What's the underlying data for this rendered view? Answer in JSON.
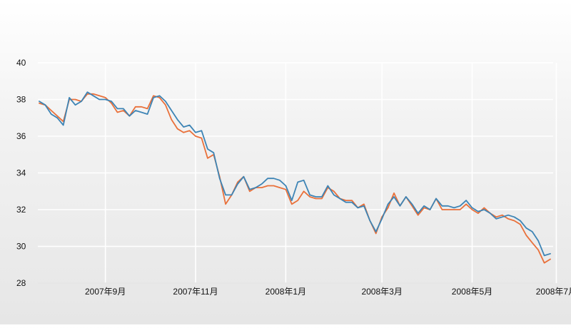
{
  "chart_data": {
    "type": "line",
    "title": "",
    "xlabel": "",
    "ylabel": "",
    "ylim": [
      28,
      40
    ],
    "yticks": [
      28,
      30,
      32,
      34,
      36,
      38,
      40
    ],
    "ytick_labels": [
      "28",
      "30",
      "32",
      "34",
      "36",
      "38",
      "40"
    ],
    "xtick_labels": [
      "2007年9月",
      "2007年11月",
      "2008年1月",
      "2008年3月",
      "2008年5月",
      "2008年7月"
    ],
    "xtick_index": [
      11,
      26,
      41,
      57,
      72,
      86
    ],
    "grid": true,
    "legend": "none",
    "colors": {
      "series_1": "#3d84b5",
      "series_2": "#e9703a",
      "grid": "#ffffff"
    },
    "series": [
      {
        "values": [
          37.9,
          37.7,
          37.2,
          37.0,
          36.6,
          38.1,
          37.7,
          37.9,
          38.4,
          38.2,
          38.0,
          38.0,
          37.9,
          37.5,
          37.5,
          37.1,
          37.4,
          37.3,
          37.2,
          38.1,
          38.2,
          37.9,
          37.4,
          36.9,
          36.5,
          36.6,
          36.2,
          36.3,
          35.3,
          35.1,
          33.7,
          32.8,
          32.8,
          33.4,
          33.8,
          33.1,
          33.2,
          33.4,
          33.7,
          33.7,
          33.6,
          33.3,
          32.5,
          33.5,
          33.6,
          32.8,
          32.7,
          32.7,
          33.3,
          32.8,
          32.6,
          32.4,
          32.4,
          32.1,
          32.2,
          31.4,
          30.8,
          31.5,
          32.3,
          32.7,
          32.2,
          32.7,
          32.3,
          31.8,
          32.2,
          32.0,
          32.6,
          32.2,
          32.2,
          32.1,
          32.2,
          32.5,
          32.1,
          31.9,
          32.0,
          31.8,
          31.5,
          31.6,
          31.7,
          31.6,
          31.4,
          31.0,
          30.8,
          30.3,
          29.5,
          29.6
        ],
        "color": "#3d84b5"
      },
      {
        "values": [
          37.8,
          37.7,
          37.4,
          37.1,
          36.8,
          38.0,
          38.0,
          37.9,
          38.3,
          38.3,
          38.2,
          38.1,
          37.8,
          37.3,
          37.4,
          37.1,
          37.6,
          37.6,
          37.5,
          38.2,
          38.1,
          37.7,
          36.9,
          36.4,
          36.2,
          36.3,
          36.0,
          35.9,
          34.8,
          35.0,
          33.8,
          32.3,
          32.8,
          33.5,
          33.8,
          33.0,
          33.2,
          33.2,
          33.3,
          33.3,
          33.2,
          33.1,
          32.3,
          32.5,
          33.0,
          32.7,
          32.6,
          32.6,
          33.2,
          33.0,
          32.6,
          32.5,
          32.5,
          32.1,
          32.3,
          31.4,
          30.7,
          31.6,
          32.1,
          32.9,
          32.2,
          32.7,
          32.2,
          31.7,
          32.1,
          32.0,
          32.6,
          32.0,
          32.0,
          32.0,
          32.0,
          32.3,
          32.0,
          31.8,
          32.1,
          31.8,
          31.6,
          31.7,
          31.5,
          31.4,
          31.2,
          30.6,
          30.2,
          29.8,
          29.1,
          29.3
        ],
        "color": "#e9703a"
      }
    ]
  }
}
